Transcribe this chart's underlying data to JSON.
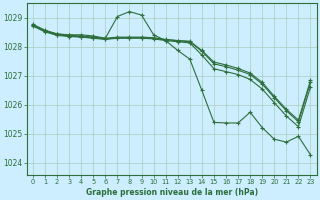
{
  "xlabel": "Graphe pression niveau de la mer (hPa)",
  "bg_color": "#cceeff",
  "grid_color": "#aaccbb",
  "line_color": "#2d6e3a",
  "text_color": "#2d6e3a",
  "xlim": [
    -0.5,
    23.5
  ],
  "ylim": [
    1023.6,
    1029.5
  ],
  "yticks": [
    1024,
    1025,
    1026,
    1027,
    1028,
    1029
  ],
  "xticks": [
    0,
    1,
    2,
    3,
    4,
    5,
    6,
    7,
    8,
    9,
    10,
    11,
    12,
    13,
    14,
    15,
    16,
    17,
    18,
    19,
    20,
    21,
    22,
    23
  ],
  "series": [
    {
      "x": [
        0,
        1,
        2,
        3,
        4,
        5,
        6,
        7,
        8,
        9,
        10,
        11,
        12,
        13,
        14,
        15,
        16,
        17,
        18,
        19,
        20,
        21,
        22,
        23
      ],
      "y": [
        1028.75,
        1028.55,
        1028.45,
        1028.42,
        1028.42,
        1028.38,
        1028.3,
        1029.05,
        1029.22,
        1029.1,
        1028.42,
        1028.22,
        1027.88,
        1027.58,
        1026.5,
        1025.4,
        1025.38,
        1025.38,
        1025.75,
        1025.22,
        1024.82,
        1024.72,
        1024.92,
        1024.28
      ]
    },
    {
      "x": [
        0,
        1,
        2,
        3,
        4,
        5,
        6,
        7,
        8,
        9,
        10,
        11,
        12,
        13,
        14,
        15,
        16,
        17,
        18,
        19,
        20,
        21,
        22,
        23
      ],
      "y": [
        1028.75,
        1028.55,
        1028.42,
        1028.38,
        1028.35,
        1028.32,
        1028.28,
        1028.32,
        1028.32,
        1028.32,
        1028.3,
        1028.25,
        1028.22,
        1028.18,
        1027.85,
        1027.42,
        1027.32,
        1027.2,
        1027.05,
        1026.72,
        1026.25,
        1025.8,
        1025.42,
        1026.78
      ]
    },
    {
      "x": [
        0,
        1,
        2,
        3,
        4,
        5,
        6,
        7,
        8,
        9,
        10,
        11,
        12,
        13,
        14,
        15,
        16,
        17,
        18,
        19,
        20,
        21,
        22,
        23
      ],
      "y": [
        1028.72,
        1028.52,
        1028.4,
        1028.36,
        1028.34,
        1028.3,
        1028.26,
        1028.3,
        1028.3,
        1028.3,
        1028.28,
        1028.22,
        1028.18,
        1028.14,
        1027.72,
        1027.25,
        1027.15,
        1027.05,
        1026.88,
        1026.55,
        1026.08,
        1025.62,
        1025.25,
        1026.62
      ]
    },
    {
      "x": [
        0,
        1,
        2,
        3,
        4,
        5,
        6,
        7,
        8,
        9,
        10,
        11,
        12,
        13,
        14,
        15,
        16,
        17,
        18,
        19,
        20,
        21,
        22,
        23
      ],
      "y": [
        1028.78,
        1028.58,
        1028.45,
        1028.4,
        1028.38,
        1028.34,
        1028.3,
        1028.34,
        1028.34,
        1028.34,
        1028.32,
        1028.26,
        1028.22,
        1028.2,
        1027.88,
        1027.48,
        1027.38,
        1027.26,
        1027.1,
        1026.78,
        1026.3,
        1025.85,
        1025.48,
        1026.85
      ]
    }
  ]
}
